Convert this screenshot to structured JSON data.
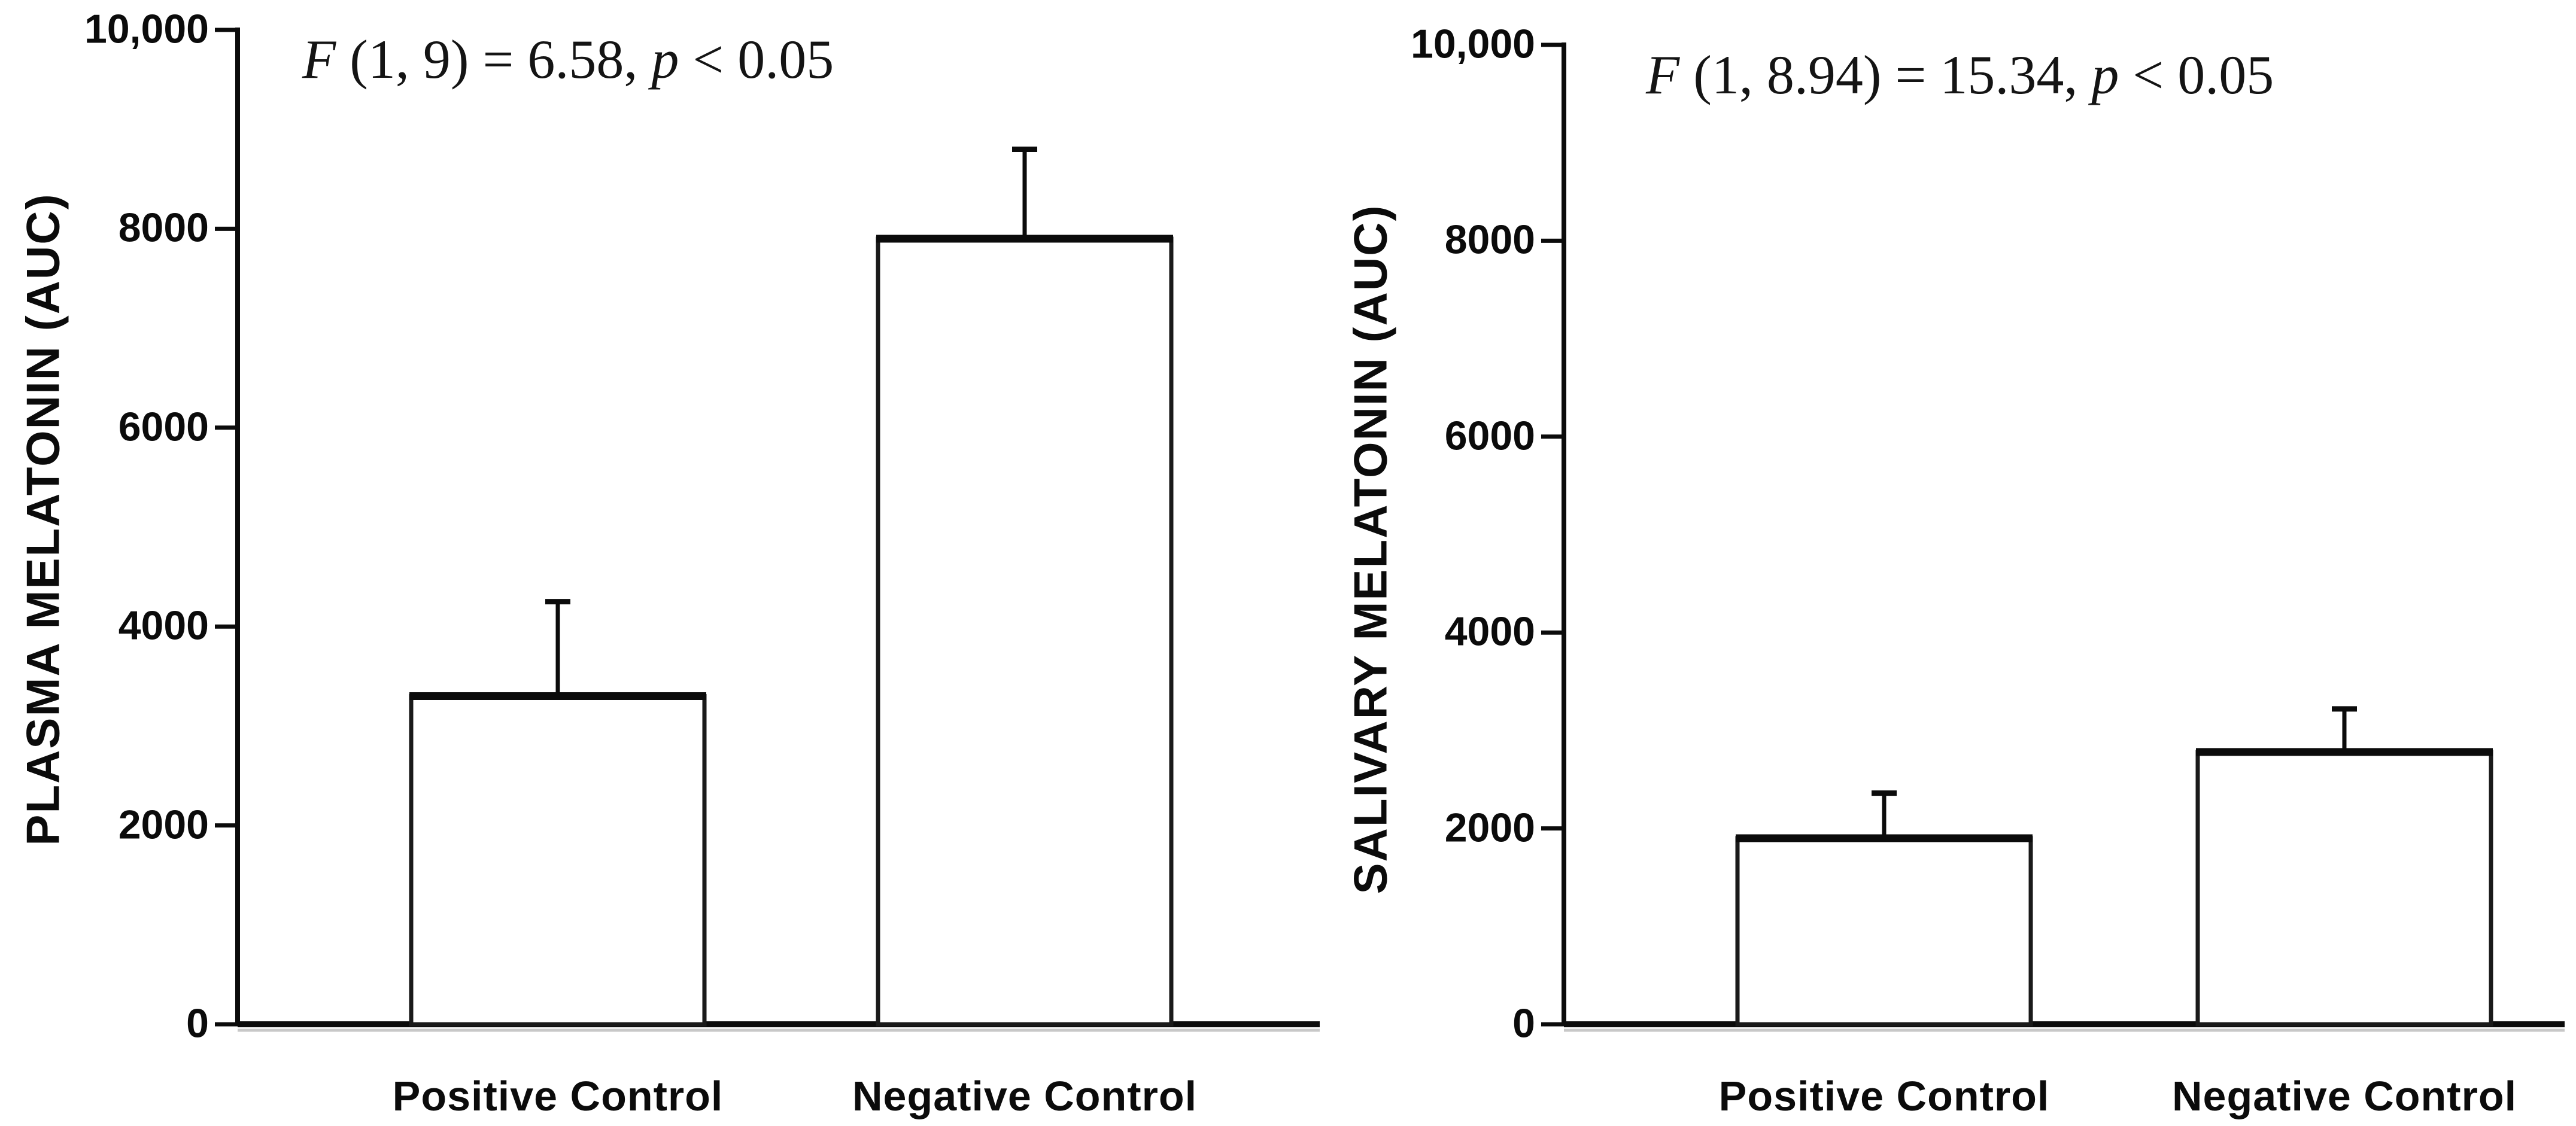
{
  "page": {
    "background": "#ffffff",
    "ink": "#0b0b0b",
    "bar_fill": "#ffffff",
    "bar_stroke": "#1a1a1a",
    "axis_shadow": "#c8c8c8"
  },
  "chart_data": [
    {
      "type": "bar",
      "panel": "plasma",
      "title": "",
      "xlabel": "",
      "ylabel": "PLASMA MELATONIN (AUC)",
      "annotation_text": "F (1, 9) = 6.58, p < 0.05",
      "annotation": {
        "f": "F",
        "mid": " (1, 9) = 6.58, ",
        "p": "p",
        "end": " < 0.05"
      },
      "categories": [
        "Positive Control",
        "Negative Control"
      ],
      "values": [
        3300,
        7900
      ],
      "errors_up": [
        950,
        900
      ],
      "ylim": [
        0,
        10000
      ],
      "yticks": [
        0,
        2000,
        4000,
        6000,
        8000,
        10000
      ],
      "ytick_labels": [
        "0",
        "2000",
        "4000",
        "6000",
        "8000",
        "10,000"
      ],
      "grid": false,
      "legend": null
    },
    {
      "type": "bar",
      "panel": "salivary",
      "title": "",
      "xlabel": "",
      "ylabel": "SALIVARY MELATONIN (AUC)",
      "annotation_text": "F (1, 8.94) = 15.34, p < 0.05",
      "annotation": {
        "f": "F",
        "mid": " (1, 8.94) = 15.34, ",
        "p": "p",
        "end": " < 0.05"
      },
      "categories": [
        "Positive Control",
        "Negative Control"
      ],
      "values": [
        1900,
        2780
      ],
      "errors_up": [
        460,
        440
      ],
      "ylim": [
        0,
        10000
      ],
      "yticks": [
        0,
        2000,
        4000,
        6000,
        8000,
        10000
      ],
      "ytick_labels": [
        "0",
        "2000",
        "4000",
        "6000",
        "8000",
        "10,000"
      ],
      "grid": false,
      "legend": null
    }
  ]
}
